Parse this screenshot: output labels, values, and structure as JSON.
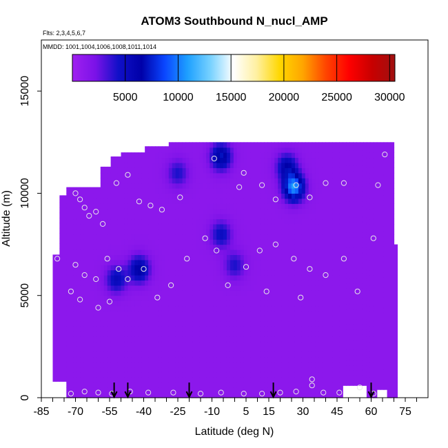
{
  "chart_data": {
    "type": "heatmap",
    "title": "ATOM3 Southbound N_nucl_AMP",
    "flights_label": "Flts: 2,3,4,5,6,7",
    "dates_label": "MMDD: 1001,1004,1006,1008,1011,1014",
    "xlabel": "Latitude (deg N)",
    "ylabel": "Altitude (m)",
    "xlim": [
      -85,
      85
    ],
    "ylim": [
      0,
      17500
    ],
    "x_ticks": [
      -85,
      -70,
      -55,
      -40,
      -25,
      -10,
      5,
      15,
      30,
      45,
      60,
      75
    ],
    "y_ticks": [
      0,
      5000,
      10000,
      15000
    ],
    "colorbar": {
      "range": [
        0,
        30500
      ],
      "ticks": [
        5000,
        10000,
        15000,
        20000,
        25000,
        30000
      ],
      "stops": [
        "#a020f0",
        "#7b12e8",
        "#1010c8",
        "#0000a8",
        "#0a46ff",
        "#1ea0ff",
        "#78d2ff",
        "#ffffff",
        "#fff0a0",
        "#ffd700",
        "#ffa500",
        "#ff4500",
        "#ff0000",
        "#c80000",
        "#a01010"
      ]
    },
    "background_value": 1200,
    "hotspots": [
      {
        "lat": -6,
        "alt": 11800,
        "value": 6000
      },
      {
        "lat": 26,
        "alt": 10300,
        "value": 9500
      },
      {
        "lat": 23,
        "alt": 11300,
        "value": 5000
      },
      {
        "lat": -42,
        "alt": 6300,
        "value": 5500
      },
      {
        "lat": -52,
        "alt": 5800,
        "value": 4200
      },
      {
        "lat": -6,
        "alt": 8000,
        "value": 3800
      },
      {
        "lat": 0,
        "alt": 6500,
        "value": 3000
      },
      {
        "lat": -25,
        "alt": 11000,
        "value": 3000
      }
    ],
    "sample_points": [
      {
        "lat": -70,
        "alt": 10000
      },
      {
        "lat": -68,
        "alt": 9700
      },
      {
        "lat": -66,
        "alt": 9300
      },
      {
        "lat": -64,
        "alt": 8900
      },
      {
        "lat": -61,
        "alt": 9100
      },
      {
        "lat": -58,
        "alt": 8500
      },
      {
        "lat": -52,
        "alt": 10500
      },
      {
        "lat": -47,
        "alt": 10900
      },
      {
        "lat": -42,
        "alt": 9600
      },
      {
        "lat": -37,
        "alt": 9400
      },
      {
        "lat": -32,
        "alt": 9200
      },
      {
        "lat": -24,
        "alt": 9800
      },
      {
        "lat": -13,
        "alt": 7800
      },
      {
        "lat": -9,
        "alt": 11700
      },
      {
        "lat": 2,
        "alt": 10300
      },
      {
        "lat": 4,
        "alt": 11000
      },
      {
        "lat": 12,
        "alt": 10400
      },
      {
        "lat": 18,
        "alt": 9700
      },
      {
        "lat": 27,
        "alt": 10400
      },
      {
        "lat": 33,
        "alt": 9800
      },
      {
        "lat": 40,
        "alt": 10500
      },
      {
        "lat": 48,
        "alt": 10500
      },
      {
        "lat": 66,
        "alt": 11900
      },
      {
        "lat": 63,
        "alt": 10400
      },
      {
        "lat": -78,
        "alt": 6800
      },
      {
        "lat": -70,
        "alt": 6500
      },
      {
        "lat": -66,
        "alt": 6000
      },
      {
        "lat": -61,
        "alt": 5800
      },
      {
        "lat": -56,
        "alt": 6800
      },
      {
        "lat": -51,
        "alt": 6300
      },
      {
        "lat": -47,
        "alt": 5800
      },
      {
        "lat": -40,
        "alt": 6300
      },
      {
        "lat": -34,
        "alt": 4900
      },
      {
        "lat": -28,
        "alt": 5500
      },
      {
        "lat": -21,
        "alt": 6800
      },
      {
        "lat": -8,
        "alt": 7200
      },
      {
        "lat": -3,
        "alt": 5500
      },
      {
        "lat": 5,
        "alt": 6400
      },
      {
        "lat": 11,
        "alt": 7200
      },
      {
        "lat": 18,
        "alt": 7500
      },
      {
        "lat": 26,
        "alt": 6800
      },
      {
        "lat": 33,
        "alt": 6300
      },
      {
        "lat": 40,
        "alt": 6000
      },
      {
        "lat": 48,
        "alt": 6800
      },
      {
        "lat": 54,
        "alt": 5200
      },
      {
        "lat": 61,
        "alt": 7800
      },
      {
        "lat": -72,
        "alt": 5200
      },
      {
        "lat": -68,
        "alt": 4800
      },
      {
        "lat": -60,
        "alt": 4400
      },
      {
        "lat": -55,
        "alt": 4700
      },
      {
        "lat": 14,
        "alt": 5200
      },
      {
        "lat": 29,
        "alt": 4900
      },
      {
        "lat": -72,
        "alt": 200
      },
      {
        "lat": -66,
        "alt": 300
      },
      {
        "lat": -60,
        "alt": 250
      },
      {
        "lat": -54,
        "alt": 200
      },
      {
        "lat": -46,
        "alt": 300
      },
      {
        "lat": -38,
        "alt": 250
      },
      {
        "lat": -27,
        "alt": 250
      },
      {
        "lat": -15,
        "alt": 200
      },
      {
        "lat": -6,
        "alt": 250
      },
      {
        "lat": 4,
        "alt": 200
      },
      {
        "lat": 12,
        "alt": 200
      },
      {
        "lat": 20,
        "alt": 250
      },
      {
        "lat": 27,
        "alt": 300
      },
      {
        "lat": 34,
        "alt": 600
      },
      {
        "lat": 34,
        "alt": 900
      },
      {
        "lat": 39,
        "alt": 250
      },
      {
        "lat": 46,
        "alt": 250
      },
      {
        "lat": 55,
        "alt": 500
      },
      {
        "lat": 61,
        "alt": 200
      }
    ],
    "arrow_latitudes": [
      -53,
      -47,
      -20,
      17,
      60
    ]
  }
}
